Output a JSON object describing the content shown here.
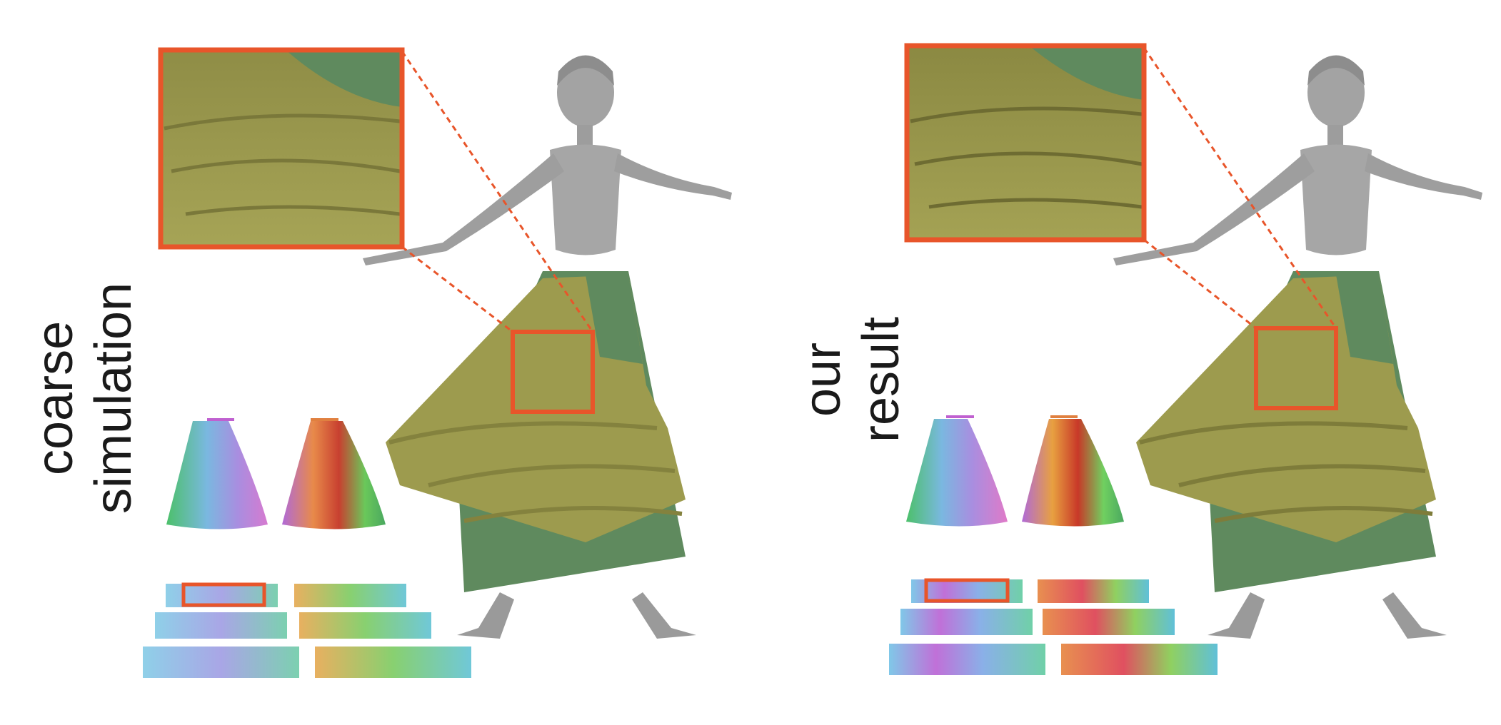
{
  "figure": {
    "panels": [
      {
        "label_lines": [
          "coarse",
          "simulation"
        ]
      },
      {
        "label_lines": [
          "our",
          "result"
        ]
      }
    ],
    "colors": {
      "highlight": "#e8552a",
      "skirt_outer": "#9d9b4e",
      "skirt_inner": "#5f8a5e",
      "body": "#9b9b9b"
    }
  }
}
